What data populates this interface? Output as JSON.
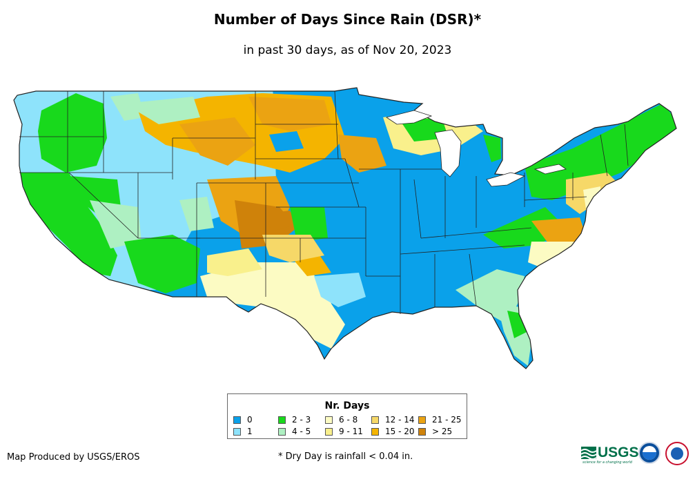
{
  "title": "Number of Days Since Rain (DSR)*",
  "subtitle": "in past 30 days, as of Nov 20, 2023",
  "legend": {
    "title": "Nr. Days",
    "items": [
      {
        "label": "0",
        "color": "#0aa1ea"
      },
      {
        "label": "1",
        "color": "#8ee3fb"
      },
      {
        "label": "2 - 3",
        "color": "#18d91c"
      },
      {
        "label": "4 - 5",
        "color": "#aef0c2"
      },
      {
        "label": "6 - 8",
        "color": "#fcfbc3"
      },
      {
        "label": "9 - 11",
        "color": "#f9f08c"
      },
      {
        "label": "12 - 14",
        "color": "#f6d868"
      },
      {
        "label": "15 - 20",
        "color": "#f4b400"
      },
      {
        "label": "21 - 25",
        "color": "#eba312"
      },
      {
        "label": "> 25",
        "color": "#cf820a"
      }
    ]
  },
  "footer": {
    "credit": "Map Produced by USGS/EROS",
    "note": "* Dry Day is rainfall < 0.04 in."
  },
  "logos": {
    "usgs_text": "USGS",
    "usgs_tagline": "science for a changing world",
    "noaa_icon": "noaa-logo",
    "nws_icon": "nws-logo"
  },
  "map_regions": [
    {
      "region": "Pacific Northwest coast",
      "category": "1"
    },
    {
      "region": "Washington/Oregon interior",
      "category": "2 - 3"
    },
    {
      "region": "California",
      "category": "2 - 3"
    },
    {
      "region": "Nevada/Utah",
      "category": "1"
    },
    {
      "region": "Montana/Wyoming",
      "category": "15 - 20"
    },
    {
      "region": "Colorado/New Mexico border",
      "category": "> 25"
    },
    {
      "region": "Texas",
      "category": "6 - 8"
    },
    {
      "region": "Midwest & Mississippi Valley",
      "category": "0"
    },
    {
      "region": "Northeast",
      "category": "2 - 3"
    },
    {
      "region": "Florida",
      "category": "4 - 5"
    }
  ]
}
